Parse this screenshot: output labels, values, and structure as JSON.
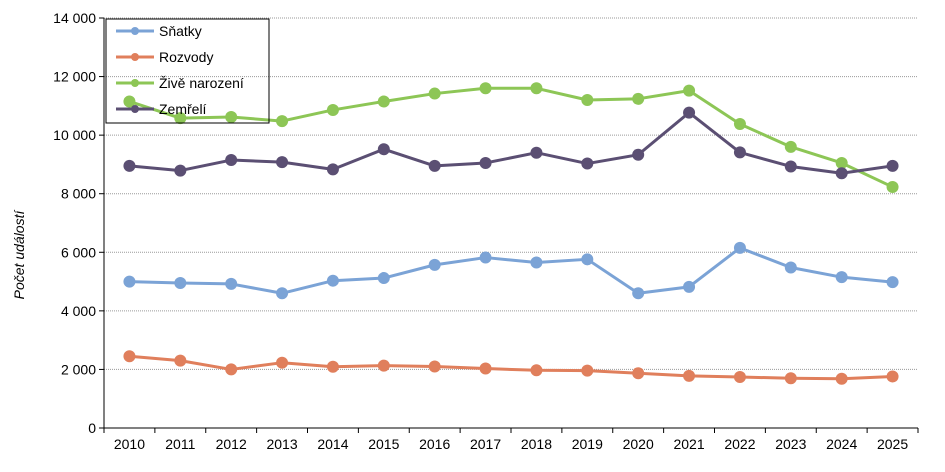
{
  "chart_data": {
    "type": "line",
    "title": "",
    "xlabel": "",
    "ylabel": "Počet událostí",
    "ylim": [
      0,
      14000
    ],
    "yticks": [
      0,
      2000,
      4000,
      6000,
      8000,
      10000,
      12000,
      14000
    ],
    "ytick_labels": [
      "0",
      "2 000",
      "4 000",
      "6 000",
      "8 000",
      "10 000",
      "12 000",
      "14 000"
    ],
    "categories": [
      "2010",
      "2011",
      "2012",
      "2013",
      "2014",
      "2015",
      "2016",
      "2017",
      "2018",
      "2019",
      "2020",
      "2021",
      "2022",
      "2023",
      "2024",
      "2025"
    ],
    "grid": true,
    "legend_position": "top-left",
    "series": [
      {
        "name": "Sňatky",
        "color": "#7ba3d6",
        "values": [
          5000,
          4950,
          4920,
          4600,
          5030,
          5120,
          5570,
          5820,
          5650,
          5760,
          4600,
          4820,
          6150,
          5480,
          5150,
          4980
        ]
      },
      {
        "name": "Rozvody",
        "color": "#e07f5c",
        "values": [
          2450,
          2300,
          2000,
          2230,
          2090,
          2130,
          2100,
          2030,
          1970,
          1960,
          1870,
          1780,
          1740,
          1700,
          1680,
          1760
        ]
      },
      {
        "name": "Živě narození",
        "color": "#8dc656",
        "values": [
          11150,
          10580,
          10620,
          10480,
          10860,
          11150,
          11420,
          11600,
          11600,
          11200,
          11240,
          11520,
          10380,
          9600,
          9050,
          8230
        ]
      },
      {
        "name": "Zemřelí",
        "color": "#5b4f73",
        "values": [
          8950,
          8790,
          9150,
          9080,
          8830,
          9520,
          8950,
          9050,
          9400,
          9030,
          9330,
          10770,
          9410,
          8930,
          8700,
          8950
        ]
      }
    ]
  }
}
